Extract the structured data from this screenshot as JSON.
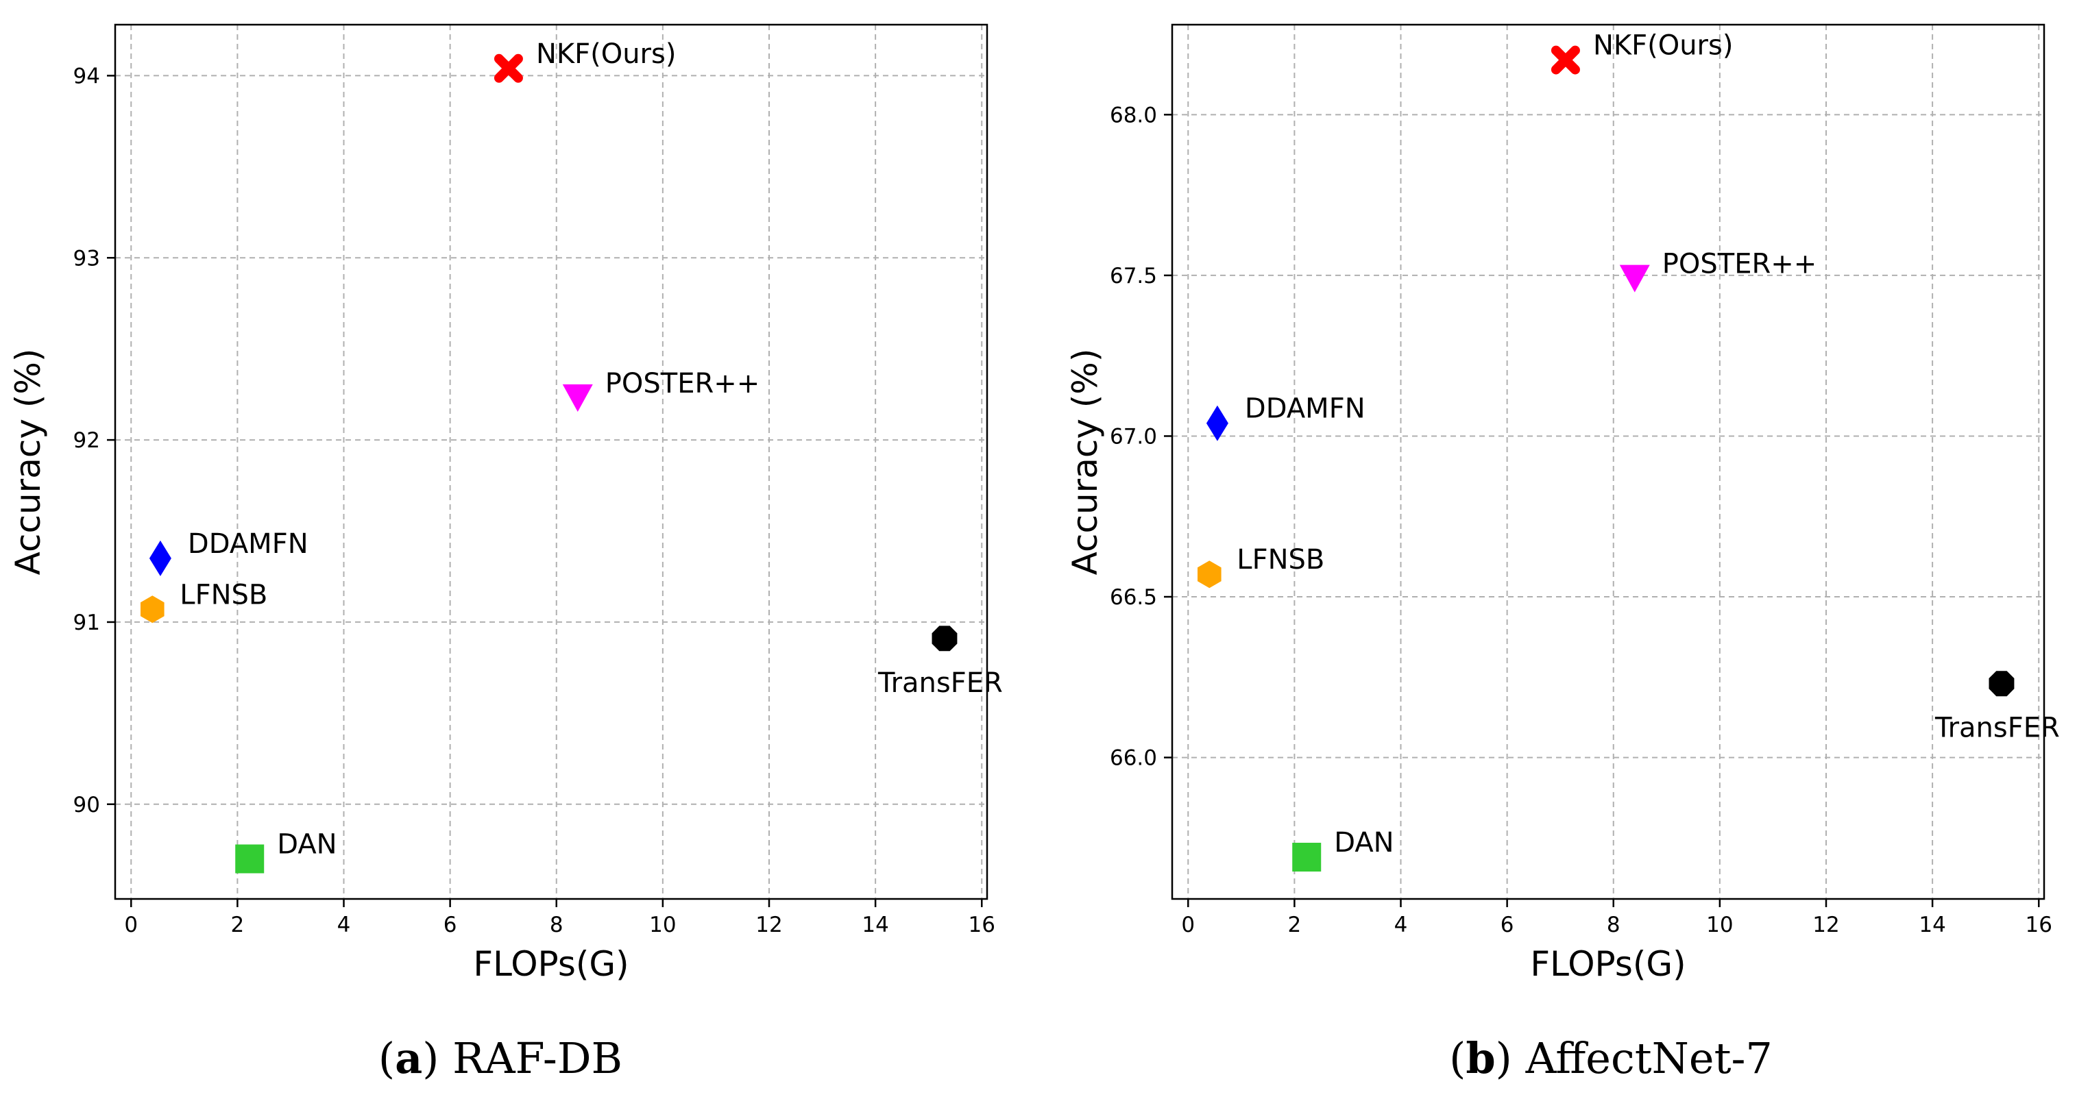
{
  "chart_data": [
    {
      "type": "scatter",
      "caption_letter": "a",
      "caption_text": ") RAF-DB",
      "caption_open": "(",
      "xlabel": "FLOPs(G)",
      "ylabel": "Accuracy (%)",
      "xlim": [
        -0.3,
        16.1
      ],
      "ylim": [
        89.48,
        94.28
      ],
      "xticks": [
        0,
        2,
        4,
        6,
        8,
        10,
        12,
        14,
        16
      ],
      "yticks": [
        90,
        91,
        92,
        93,
        94
      ],
      "ytick_format": 0,
      "grid": true,
      "points": [
        {
          "name": "NKF(Ours)",
          "x": 7.1,
          "y": 94.04,
          "marker": "x",
          "color": "#ff0000",
          "label_pos": "right"
        },
        {
          "name": "POSTER++",
          "x": 8.4,
          "y": 92.23,
          "marker": "triangle-down",
          "color": "#ff00ff",
          "label_pos": "right"
        },
        {
          "name": "DDAMFN",
          "x": 0.55,
          "y": 91.35,
          "marker": "diamond",
          "color": "#0000ff",
          "label_pos": "right"
        },
        {
          "name": "LFNSB",
          "x": 0.4,
          "y": 91.07,
          "marker": "hexagon",
          "color": "#ffa500",
          "label_pos": "right"
        },
        {
          "name": "TransFER",
          "x": 15.3,
          "y": 90.91,
          "marker": "octagon",
          "color": "#000000",
          "label_pos": "below"
        },
        {
          "name": "DAN",
          "x": 2.23,
          "y": 89.7,
          "marker": "square",
          "color": "#33cc33",
          "label_pos": "right"
        }
      ]
    },
    {
      "type": "scatter",
      "caption_letter": "b",
      "caption_text": ") AffectNet-7",
      "caption_open": "(",
      "xlabel": "FLOPs(G)",
      "ylabel": "Accuracy (%)",
      "xlim": [
        -0.3,
        16.1
      ],
      "ylim": [
        65.56,
        68.28
      ],
      "xticks": [
        0,
        2,
        4,
        6,
        8,
        10,
        12,
        14,
        16
      ],
      "yticks": [
        66.0,
        66.5,
        67.0,
        67.5,
        68.0
      ],
      "ytick_format": 1,
      "grid": true,
      "points": [
        {
          "name": "NKF(Ours)",
          "x": 7.1,
          "y": 68.17,
          "marker": "x",
          "color": "#ff0000",
          "label_pos": "right"
        },
        {
          "name": "POSTER++",
          "x": 8.4,
          "y": 67.49,
          "marker": "triangle-down",
          "color": "#ff00ff",
          "label_pos": "right"
        },
        {
          "name": "DDAMFN",
          "x": 0.55,
          "y": 67.04,
          "marker": "diamond",
          "color": "#0000ff",
          "label_pos": "right"
        },
        {
          "name": "LFNSB",
          "x": 0.4,
          "y": 66.57,
          "marker": "hexagon",
          "color": "#ffa500",
          "label_pos": "right"
        },
        {
          "name": "TransFER",
          "x": 15.3,
          "y": 66.23,
          "marker": "octagon",
          "color": "#000000",
          "label_pos": "below"
        },
        {
          "name": "DAN",
          "x": 2.23,
          "y": 65.69,
          "marker": "square",
          "color": "#33cc33",
          "label_pos": "right"
        }
      ]
    }
  ]
}
